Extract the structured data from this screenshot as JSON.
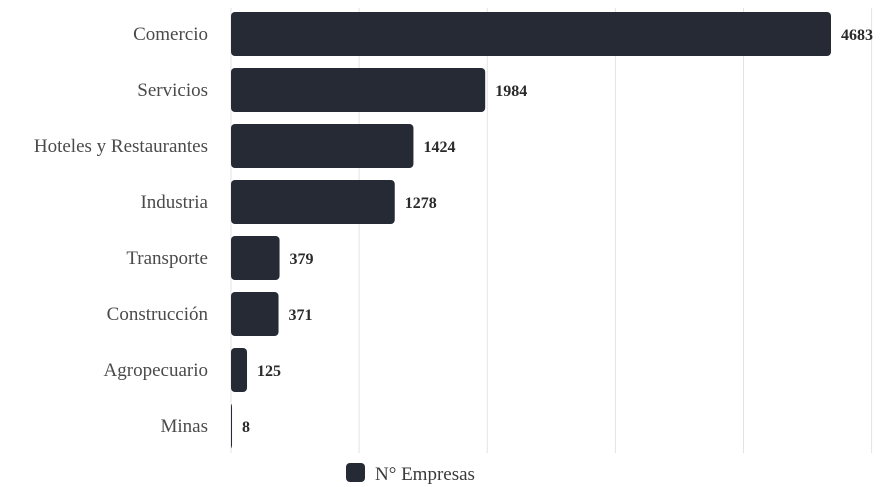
{
  "chart_data": {
    "type": "bar",
    "orientation": "horizontal",
    "categories": [
      "Comercio",
      "Servicios",
      "Hoteles y Restaurantes",
      "Industria",
      "Transporte",
      "Construcción",
      "Agropecuario",
      "Minas"
    ],
    "series": [
      {
        "name": "N° Empresas",
        "values": [
          4683,
          1984,
          1424,
          1278,
          379,
          371,
          125,
          8
        ]
      }
    ],
    "title": "",
    "xlabel": "",
    "ylabel": "",
    "xlim": [
      0,
      5000
    ],
    "grid": "vertical",
    "legend_position": "bottom",
    "colors": {
      "bar": "#252a35",
      "grid": "#e3e3e3"
    }
  }
}
